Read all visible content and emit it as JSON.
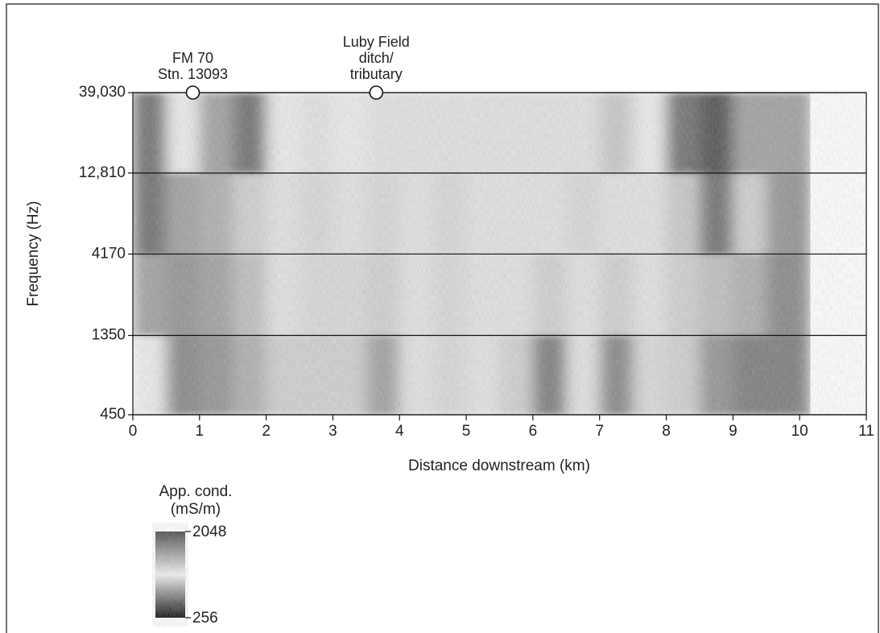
{
  "chart_data": {
    "type": "heatmap",
    "xlabel": "Distance downstream (km)",
    "ylabel": "Frequency (Hz)",
    "xlim": [
      0,
      11
    ],
    "xticks": [
      0,
      1,
      2,
      3,
      4,
      5,
      6,
      7,
      8,
      9,
      10,
      11
    ],
    "ylim": [
      450,
      39030
    ],
    "yscale": "log",
    "yticks": [
      450,
      1350,
      4170,
      {
        "value": 12810,
        "label": "12,810"
      },
      {
        "value": 39030,
        "label": "39,030"
      }
    ],
    "grid": true,
    "x_bins": [
      0,
      0.5,
      1,
      1.5,
      2,
      2.5,
      3,
      3.5,
      4,
      4.5,
      5,
      5.5,
      6,
      6.5,
      7,
      7.5,
      8,
      8.5,
      9,
      9.5,
      10,
      10.15
    ],
    "y_bins": [
      450,
      1350,
      4170,
      12810,
      39030
    ],
    "z": [
      [
        700,
        1400,
        1300,
        1100,
        900,
        900,
        900,
        1200,
        800,
        850,
        800,
        900,
        1500,
        800,
        1400,
        850,
        900,
        1300,
        1500,
        1500,
        1500
      ],
      [
        500,
        1300,
        1200,
        1000,
        800,
        850,
        850,
        900,
        800,
        850,
        800,
        800,
        900,
        800,
        900,
        800,
        900,
        1000,
        1100,
        1400,
        1400
      ],
      [
        400,
        1200,
        1100,
        900,
        800,
        850,
        800,
        850,
        800,
        850,
        800,
        800,
        800,
        850,
        800,
        800,
        600,
        400,
        900,
        1300,
        1400
      ],
      [
        400,
        700,
        500,
        400,
        700,
        800,
        700,
        800,
        800,
        800,
        800,
        800,
        800,
        800,
        600,
        700,
        400,
        350,
        500,
        1200,
        1300
      ]
    ],
    "colormap": [
      "#0c0c0c",
      "#f2f2f2",
      "#4a4a4a"
    ],
    "colorbar": {
      "title": [
        "App. cond.",
        "(mS/m)"
      ],
      "scale": "log",
      "lim": [
        256,
        2048
      ],
      "ticks": [
        256,
        2048
      ]
    },
    "annotations": [
      {
        "text": [
          "FM 70",
          "Stn. 13093"
        ],
        "x": 0.9
      },
      {
        "text": [
          "Luby Field",
          "ditch/",
          "tributary"
        ],
        "x": 3.65
      }
    ]
  }
}
